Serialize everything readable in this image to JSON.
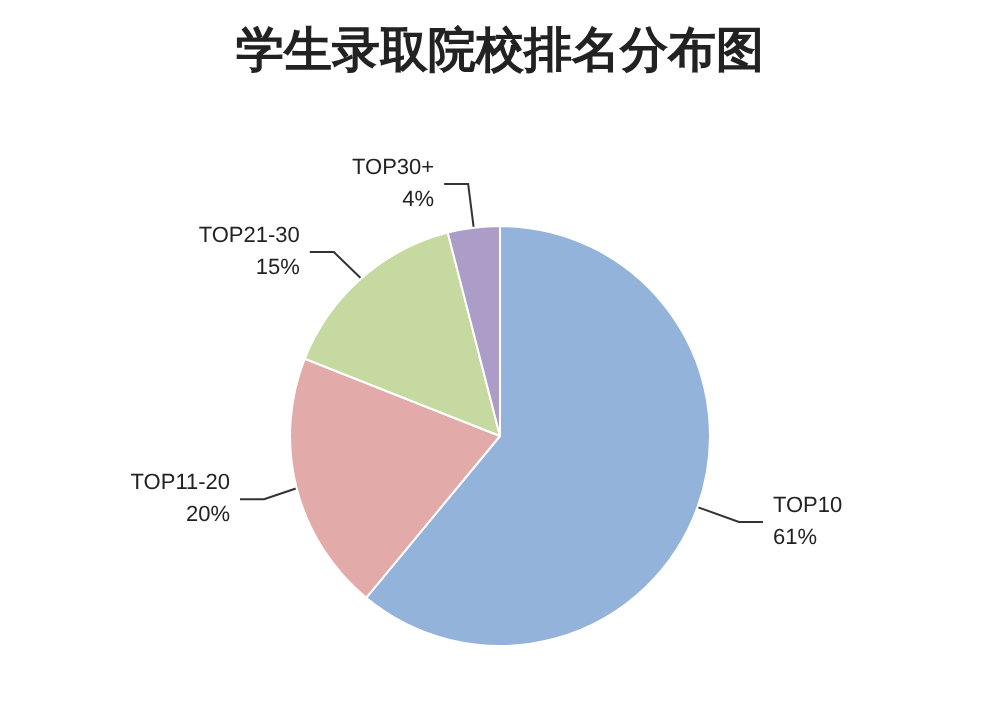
{
  "chart_data": {
    "type": "pie",
    "title": "学生录取院校排名分布图",
    "categories": [
      "TOP10",
      "TOP11-20",
      "TOP21-30",
      "TOP30+"
    ],
    "values": [
      61,
      20,
      15,
      4
    ],
    "value_labels": [
      "61%",
      "20%",
      "15%",
      "4%"
    ],
    "colors": [
      "#93b3db",
      "#e2aaa9",
      "#c6d9a0",
      "#ab9cc8"
    ],
    "legend": false
  }
}
